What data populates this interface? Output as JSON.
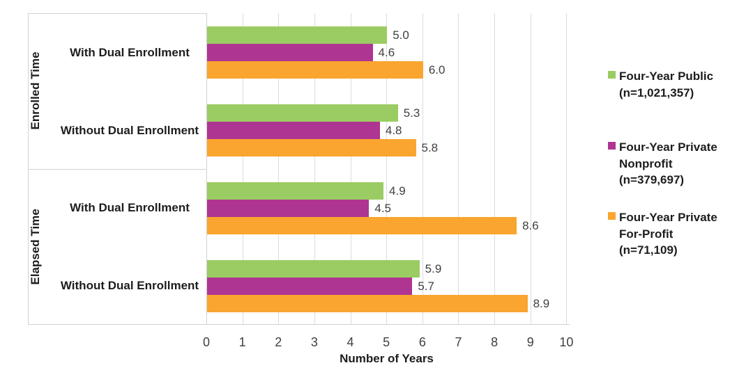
{
  "chart_data": {
    "type": "bar",
    "orientation": "horizontal",
    "title": "",
    "xlabel": "Number of Years",
    "ylabel": "",
    "xlim": [
      0,
      10
    ],
    "xticks": [
      "0",
      "1",
      "2",
      "3",
      "4",
      "5",
      "6",
      "7",
      "8",
      "9",
      "10"
    ],
    "grid": true,
    "legend_position": "right",
    "sections": [
      {
        "label": "Enrolled Time"
      },
      {
        "label": "Elapsed Time"
      }
    ],
    "groups": [
      {
        "section": "Enrolled Time",
        "category": "With Dual Enrollment",
        "values": [
          5.0,
          4.6,
          6.0
        ],
        "labels": [
          "5.0",
          "4.6",
          "6.0"
        ]
      },
      {
        "section": "Enrolled Time",
        "category": "Without Dual Enrollment",
        "values": [
          5.3,
          4.8,
          5.8
        ],
        "labels": [
          "5.3",
          "4.8",
          "5.8"
        ]
      },
      {
        "section": "Elapsed Time",
        "category": "With Dual Enrollment",
        "values": [
          4.9,
          4.5,
          8.6
        ],
        "labels": [
          "4.9",
          "4.5",
          "8.6"
        ]
      },
      {
        "section": "Elapsed Time",
        "category": "Without Dual Enrollment",
        "values": [
          5.9,
          5.7,
          8.9
        ],
        "labels": [
          "5.9",
          "5.7",
          "8.9"
        ]
      }
    ],
    "series": [
      {
        "name": "Four-Year Public (n=1,021,357)",
        "legend_lines": [
          "Four-Year Public",
          "(n=1,021,357)"
        ],
        "color": "#9BCC63"
      },
      {
        "name": "Four-Year Private Nonprofit (n=379,697)",
        "legend_lines": [
          "Four-Year Private",
          "Nonprofit",
          "(n=379,697)"
        ],
        "color": "#AF3592"
      },
      {
        "name": "Four-Year Private For-Profit (n=71,109)",
        "legend_lines": [
          "Four-Year Private",
          "For-Profit",
          "(n=71,109)"
        ],
        "color": "#F9A52F"
      }
    ],
    "colors": {
      "gridline": "#DBDBDB",
      "axis_border": "#D2D2D2",
      "tick_text": "#404040",
      "label_text": "#1D1D1D",
      "background": "#FFFFFF"
    }
  }
}
